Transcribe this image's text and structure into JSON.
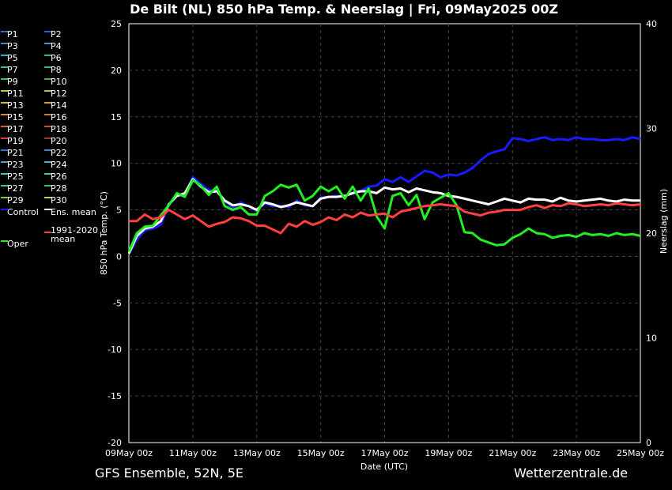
{
  "title": "De Bilt  (NL)  850 hPa Temp. & Neerslag | Fri, 09May2025 00Z",
  "footer_left": "GFS Ensemble, 52N, 5E",
  "footer_right": "Wetterzentrale.de",
  "legend": [
    {
      "label": "P1",
      "color": "#4a66c8"
    },
    {
      "label": "P2",
      "color": "#2f5fd6"
    },
    {
      "label": "P3",
      "color": "#4a86c8"
    },
    {
      "label": "P4",
      "color": "#3a9ad6"
    },
    {
      "label": "P5",
      "color": "#3aa6c8"
    },
    {
      "label": "P6",
      "color": "#2fb8a8"
    },
    {
      "label": "P7",
      "color": "#2fc0a0"
    },
    {
      "label": "P8",
      "color": "#2fb870"
    },
    {
      "label": "P9",
      "color": "#3ac860"
    },
    {
      "label": "P10",
      "color": "#2fc02f"
    },
    {
      "label": "P11",
      "color": "#b8c83a"
    },
    {
      "label": "P12",
      "color": "#c8c03a"
    },
    {
      "label": "P13",
      "color": "#d6b83a"
    },
    {
      "label": "P14",
      "color": "#d6a02f"
    },
    {
      "label": "P15",
      "color": "#d68a3a"
    },
    {
      "label": "P16",
      "color": "#c8783a"
    },
    {
      "label": "P17",
      "color": "#d66a3a"
    },
    {
      "label": "P18",
      "color": "#c8502f"
    },
    {
      "label": "P19",
      "color": "#d63a3a"
    },
    {
      "label": "P20",
      "color": "#a82f2f"
    },
    {
      "label": "P21",
      "color": "#3a6ad6"
    },
    {
      "label": "P22",
      "color": "#3a86d6"
    },
    {
      "label": "P23",
      "color": "#4aa0d6"
    },
    {
      "label": "P24",
      "color": "#3ab8d6"
    },
    {
      "label": "P25",
      "color": "#3ac8b8"
    },
    {
      "label": "P26",
      "color": "#2fd6a0"
    },
    {
      "label": "P27",
      "color": "#3ac880"
    },
    {
      "label": "P28",
      "color": "#2fc060"
    },
    {
      "label": "P29",
      "color": "#6ad63a"
    },
    {
      "label": "P30",
      "color": "#c8d63a"
    },
    {
      "label": "Control",
      "color": "#1a1aff"
    },
    {
      "label": "Ens. mean",
      "color": "#ffffff"
    },
    {
      "label": "Oper",
      "color": "#22ee22"
    },
    {
      "label": "1991-2020\nmean",
      "color": "#ff4040"
    }
  ],
  "chart_data": {
    "type": "line",
    "xlabel": "Date (UTC)",
    "ylabel": "850 hPa Temp. (°C)",
    "y2label": "Neerslag (mm)",
    "x_ticks": [
      "09May 00z",
      "11May 00z",
      "13May 00z",
      "15May 00z",
      "17May 00z",
      "19May 00z",
      "21May 00z",
      "23May 00z",
      "25May 00z"
    ],
    "x_range_hours": [
      0,
      384
    ],
    "ylim": [
      -20,
      25
    ],
    "y_ticks": [
      25,
      20,
      15,
      10,
      5,
      0,
      -5,
      -10,
      -15,
      -20
    ],
    "y2lim": [
      0,
      40
    ],
    "y2_ticks": [
      40,
      30,
      20,
      10,
      0
    ],
    "grid": true,
    "step_hours": 6,
    "series": [
      {
        "name": "Control",
        "color": "#1a1aff",
        "width": 3,
        "values": [
          0.3,
          1.8,
          2.8,
          3.0,
          3.4,
          5.5,
          6.5,
          6.6,
          8.5,
          7.8,
          7.1,
          7.1,
          6.0,
          5.2,
          5.8,
          5.4,
          4.9,
          5.7,
          5.4,
          5.4,
          5.3,
          6.0,
          5.5,
          5.4,
          6.3,
          6.4,
          6.5,
          6.4,
          6.9,
          7.0,
          7.5,
          7.6,
          8.3,
          8.0,
          8.5,
          8.0,
          8.6,
          9.2,
          9.0,
          8.5,
          8.8,
          8.7,
          9.0,
          9.5,
          10.3,
          11.0,
          11.3,
          11.5,
          12.7,
          12.6,
          12.4,
          12.6,
          12.8,
          12.5,
          12.6,
          12.5,
          12.8,
          12.6,
          12.6,
          12.5,
          12.5,
          12.6,
          12.5,
          12.8,
          12.6
        ]
      },
      {
        "name": "Ens. mean",
        "color": "#ffffff",
        "width": 3,
        "values": [
          0.3,
          2.2,
          3.0,
          3.2,
          3.8,
          5.6,
          6.5,
          6.8,
          8.3,
          7.5,
          6.9,
          7.0,
          6.0,
          5.5,
          5.6,
          5.4,
          5.0,
          5.8,
          5.6,
          5.3,
          5.5,
          5.8,
          5.6,
          5.4,
          6.2,
          6.4,
          6.4,
          6.5,
          6.8,
          7.0,
          7.0,
          6.8,
          7.4,
          7.2,
          7.3,
          6.9,
          7.3,
          7.1,
          6.9,
          6.8,
          6.5,
          6.4,
          6.2,
          6.0,
          5.8,
          5.6,
          5.9,
          6.2,
          6.0,
          5.8,
          6.2,
          6.1,
          6.1,
          5.9,
          6.3,
          6.0,
          5.9,
          6.0,
          6.1,
          6.2,
          6.0,
          5.9,
          6.1,
          6.0,
          6.0
        ]
      },
      {
        "name": "Oper",
        "color": "#22ee22",
        "width": 3,
        "values": [
          0.5,
          2.5,
          3.2,
          3.3,
          4.4,
          5.5,
          6.8,
          6.4,
          8.2,
          7.6,
          6.6,
          7.5,
          5.4,
          5.0,
          5.3,
          4.5,
          4.5,
          6.5,
          7.0,
          7.7,
          7.4,
          7.7,
          6.0,
          6.5,
          7.5,
          7.0,
          7.5,
          6.2,
          7.5,
          6.0,
          7.3,
          4.3,
          3.0,
          6.5,
          6.8,
          5.5,
          6.6,
          4.0,
          5.8,
          6.3,
          6.8,
          5.5,
          2.6,
          2.5,
          1.8,
          1.5,
          1.2,
          1.3,
          2.0,
          2.4,
          3.0,
          2.5,
          2.4,
          2.0,
          2.2,
          2.3,
          2.1,
          2.5,
          2.3,
          2.4,
          2.2,
          2.5,
          2.3,
          2.4,
          2.2
        ]
      },
      {
        "name": "1991-2020\nmean",
        "color": "#ff4040",
        "width": 3,
        "values": [
          3.8,
          3.8,
          4.5,
          4.0,
          4.2,
          5.0,
          4.5,
          4.0,
          4.4,
          3.8,
          3.2,
          3.5,
          3.7,
          4.2,
          4.1,
          3.8,
          3.3,
          3.3,
          2.9,
          2.5,
          3.5,
          3.2,
          3.8,
          3.4,
          3.7,
          4.2,
          3.9,
          4.5,
          4.2,
          4.7,
          4.4,
          4.5,
          4.6,
          4.2,
          4.8,
          5.0,
          5.2,
          5.4,
          5.5,
          5.6,
          5.5,
          5.4,
          4.8,
          4.6,
          4.4,
          4.7,
          4.8,
          5.0,
          5.0,
          5.0,
          5.3,
          5.5,
          5.2,
          5.5,
          5.4,
          5.7,
          5.6,
          5.4,
          5.5,
          5.6,
          5.5,
          5.7,
          5.6,
          5.5,
          5.6
        ]
      }
    ],
    "precip_series": [
      {
        "name": "P1",
        "color": "#4a66c8",
        "values": [
          0,
          0,
          0,
          0,
          0,
          0,
          0,
          0,
          0,
          0,
          0,
          0,
          0,
          0,
          0,
          0,
          0,
          0,
          0,
          0,
          0,
          0,
          0,
          0,
          0,
          0,
          0,
          0,
          0,
          0,
          0,
          0,
          0,
          0,
          0,
          0,
          0,
          0,
          0,
          0,
          0,
          0,
          0,
          0,
          0,
          0,
          0,
          0,
          0,
          0,
          0,
          0,
          0,
          0,
          0,
          0,
          0,
          0,
          0,
          0,
          0,
          0,
          0,
          0,
          0
        ]
      },
      {
        "name": "P2",
        "color": "#2f5fd6",
        "values": [
          0,
          0,
          0,
          0,
          0,
          0,
          0,
          0,
          0,
          0,
          0,
          0,
          0,
          0,
          0,
          0,
          0,
          0,
          0,
          0,
          0,
          0,
          0,
          0,
          0,
          0,
          0,
          0,
          0,
          0,
          0,
          0,
          0,
          0,
          0,
          0,
          0,
          0,
          0,
          0,
          0,
          0,
          0,
          0,
          0,
          0,
          0,
          0,
          0,
          0,
          0,
          0,
          0,
          0,
          0,
          0,
          0,
          0,
          0,
          0,
          0,
          0,
          0,
          0,
          0
        ]
      },
      {
        "name": "P3",
        "color": "#4a86c8",
        "values": [
          0,
          0,
          0,
          0,
          0,
          0,
          0,
          0,
          0,
          0,
          0,
          0,
          0,
          0,
          0,
          0,
          0,
          0,
          0,
          0,
          0,
          0,
          0,
          0,
          0,
          0,
          0,
          0,
          0,
          0,
          0,
          0,
          0,
          0,
          0,
          0,
          0,
          0,
          0,
          0,
          0,
          0,
          0,
          0,
          0,
          0,
          0,
          0,
          0,
          0,
          0,
          0,
          0,
          0,
          0,
          0,
          0,
          0,
          0,
          0,
          0,
          0,
          0,
          0,
          0
        ]
      },
      {
        "name": "P8",
        "color": "#2fb870",
        "values": [
          0,
          0,
          0,
          0,
          0,
          0,
          0,
          0,
          0,
          0,
          0,
          0,
          0,
          0,
          0,
          0,
          0,
          0,
          0,
          0,
          0,
          0,
          0,
          0,
          0,
          0,
          0,
          0,
          0,
          0,
          0,
          0,
          0,
          0,
          0,
          0,
          0,
          0,
          0,
          0,
          0,
          0,
          0,
          0,
          0,
          0,
          0,
          0,
          0,
          0,
          0,
          0,
          0,
          0,
          0,
          0,
          0,
          0,
          0,
          0,
          0,
          0,
          0,
          0,
          0
        ]
      },
      {
        "name": "P12",
        "color": "#c8c03a",
        "values": [
          0,
          0,
          0,
          0,
          0,
          0,
          0,
          0,
          0,
          0,
          0,
          0,
          0,
          0,
          0,
          0,
          0,
          0,
          0,
          0,
          0,
          0,
          0,
          0,
          0,
          0,
          0,
          0,
          0,
          0,
          0,
          0,
          0,
          0,
          0,
          0,
          0,
          0,
          0,
          0,
          0,
          0,
          0,
          0,
          0,
          0,
          0,
          0,
          0,
          0,
          0,
          0,
          0,
          0,
          0,
          0,
          0,
          0,
          0,
          0,
          0,
          0,
          0,
          0,
          0
        ]
      },
      {
        "name": "P18",
        "color": "#c8502f",
        "values": [
          0,
          0,
          0,
          0,
          0,
          0,
          0,
          0,
          0,
          0,
          0,
          0,
          0,
          0,
          0,
          0,
          0,
          0,
          0,
          0,
          0,
          0,
          0,
          0,
          0,
          0,
          0,
          0,
          0,
          0,
          0,
          0,
          0,
          0,
          0,
          0,
          0,
          0,
          0,
          0,
          0,
          0,
          0,
          0,
          0,
          0,
          0,
          0,
          0,
          0,
          0,
          0,
          0,
          0,
          0,
          0,
          0,
          0,
          0,
          0,
          0,
          0,
          0,
          0,
          0
        ]
      },
      {
        "name": "Oper",
        "color": "#22ee22",
        "values": [
          0,
          0,
          0,
          0,
          0,
          0,
          0,
          0,
          0,
          0,
          0,
          0,
          0,
          0,
          0,
          0,
          0,
          0,
          0,
          0,
          0,
          0,
          0,
          0,
          0,
          0,
          0,
          0,
          0,
          0,
          0,
          0,
          0,
          0,
          0,
          0,
          0,
          0,
          0,
          0,
          0,
          0,
          0,
          0,
          0,
          0,
          0,
          0,
          0,
          0,
          0,
          0,
          0,
          0,
          0,
          0,
          0,
          0,
          0,
          0,
          0,
          0,
          0,
          0,
          0
        ]
      },
      {
        "name": "Ens. mean",
        "color": "#ffffff",
        "values": [
          0,
          0,
          0,
          0,
          0,
          0,
          0,
          0,
          0,
          0,
          0,
          0,
          0,
          0,
          0,
          0,
          0,
          0,
          0,
          0,
          0,
          0,
          0,
          0,
          0,
          0,
          0,
          0,
          0,
          0,
          0,
          0,
          0,
          0,
          0,
          0,
          0,
          0,
          0,
          0,
          0,
          0,
          0,
          0,
          0,
          0,
          0,
          0,
          0,
          0,
          0,
          0,
          0,
          0,
          0,
          0,
          0,
          0,
          0,
          0,
          0,
          0,
          0,
          0,
          0
        ]
      }
    ]
  }
}
